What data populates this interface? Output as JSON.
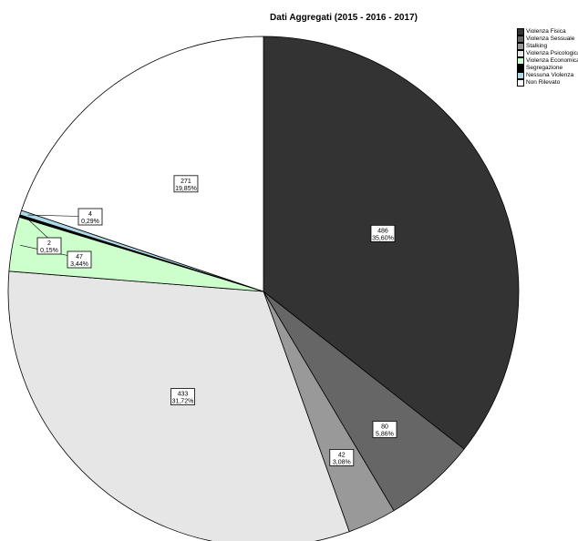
{
  "chart_data": {
    "type": "pie",
    "title": "Dati Aggregati (2015 - 2016 - 2017)",
    "legend_position": "top-right",
    "slices": [
      {
        "name": "Violenza Fisica",
        "value": 486,
        "percent_label": "35,60%",
        "color": "#333333"
      },
      {
        "name": "Violenza Sessuale",
        "value": 80,
        "percent_label": "5,86%",
        "color": "#666666"
      },
      {
        "name": "Stalking",
        "value": 42,
        "percent_label": "3,08%",
        "color": "#999999"
      },
      {
        "name": "Violenza Psicologica",
        "value": 433,
        "percent_label": "31,72%",
        "color": "#e6e6e6"
      },
      {
        "name": "Violenza Economica",
        "value": 47,
        "percent_label": "3,44%",
        "color": "#ccffcc"
      },
      {
        "name": "Segregazione",
        "value": 2,
        "percent_label": "0,15%",
        "color": "#000000"
      },
      {
        "name": "Nessuna Violenza",
        "value": 4,
        "percent_label": "0,29%",
        "color": "#add8e6"
      },
      {
        "name": "Non Rilevato",
        "value": 271,
        "percent_label": "19,85%",
        "color": "#ffffff"
      }
    ]
  }
}
